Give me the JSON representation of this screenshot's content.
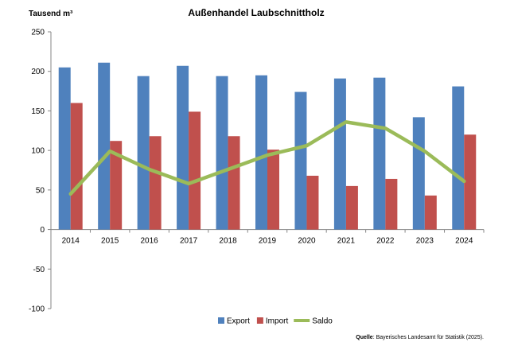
{
  "chart_data": {
    "type": "bar",
    "title": "Außenhandel Laubschnittholz",
    "ylabel": "Tausend m³",
    "xlabel": "",
    "ylim": [
      -100,
      250
    ],
    "yticks": [
      -100,
      -50,
      0,
      50,
      100,
      150,
      200,
      250
    ],
    "categories": [
      "2014",
      "2015",
      "2016",
      "2017",
      "2018",
      "2019",
      "2020",
      "2021",
      "2022",
      "2023",
      "2024"
    ],
    "series": [
      {
        "name": "Export",
        "type": "bar",
        "color": "#4f81bd",
        "values": [
          205,
          211,
          194,
          207,
          194,
          195,
          174,
          191,
          192,
          142,
          181
        ]
      },
      {
        "name": "Import",
        "type": "bar",
        "color": "#c0504d",
        "values": [
          160,
          112,
          118,
          149,
          118,
          101,
          68,
          55,
          64,
          43,
          120
        ]
      },
      {
        "name": "Saldo",
        "type": "line",
        "color": "#9bbb59",
        "values": [
          45,
          99,
          76,
          58,
          76,
          94,
          106,
          136,
          128,
          99,
          61
        ]
      }
    ],
    "legend_position": "bottom",
    "grid": false,
    "source_label": "Quelle",
    "source_text": ": Bayerisches Landesamt für Statistik (2025)."
  }
}
